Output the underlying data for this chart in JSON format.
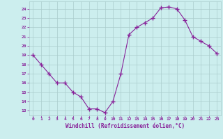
{
  "x": [
    0,
    1,
    2,
    3,
    4,
    5,
    6,
    7,
    8,
    9,
    10,
    11,
    12,
    13,
    14,
    15,
    16,
    17,
    18,
    19,
    20,
    21,
    22,
    23
  ],
  "y": [
    19,
    18,
    17,
    16,
    16,
    15,
    14.5,
    13.2,
    13.2,
    12.8,
    14,
    17,
    21.2,
    22,
    22.5,
    23,
    24.1,
    24.2,
    24,
    22.8,
    21,
    20.5,
    20,
    19.2
  ],
  "line_color": "#882299",
  "marker": "+",
  "marker_size": 4,
  "background_color": "#cceeee",
  "grid_color": "#aacccc",
  "xlabel": "Windchill (Refroidissement éolien,°C)",
  "xlabel_color": "#882299",
  "tick_color": "#882299",
  "ylim": [
    12.5,
    24.8
  ],
  "yticks": [
    13,
    14,
    15,
    16,
    17,
    18,
    19,
    20,
    21,
    22,
    23,
    24
  ],
  "xlim": [
    -0.5,
    23.5
  ],
  "xticks": [
    0,
    1,
    2,
    3,
    4,
    5,
    6,
    7,
    8,
    9,
    10,
    11,
    12,
    13,
    14,
    15,
    16,
    17,
    18,
    19,
    20,
    21,
    22,
    23
  ]
}
